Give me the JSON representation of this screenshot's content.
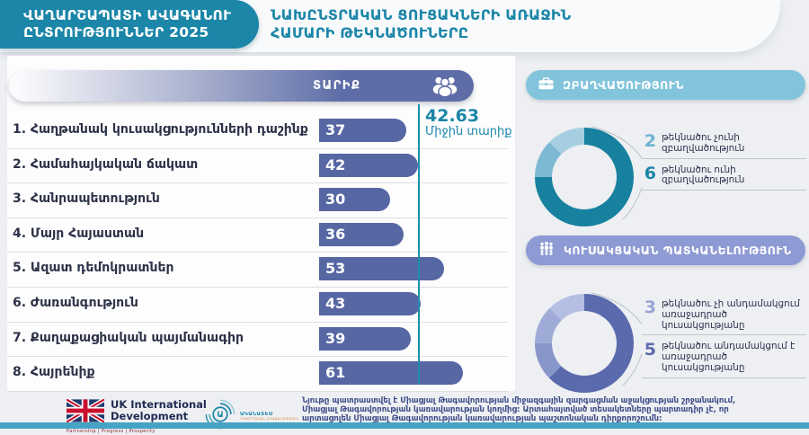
{
  "header": {
    "badge": [
      "ՎԱՂԱՐՇԱՊԱՏԻ ԱՎԱԳԱՆՈՒ",
      "ԸՆՏՐՈՒԹՅՈՒՆՆԵՐ 2025"
    ],
    "title": [
      "ՆԱԽԸՆՏՐԱԿԱՆ ՑՈՒՑԱԿՆԵՐԻ ԱՌԱՋԻՆ",
      "ՀԱՄԱՐԻ ԹԵԿՆԱԾՈՒՆԵՐԸ"
    ]
  },
  "age_section": {
    "column_header": "ՏԱՐԻՔ",
    "average_value": "42.63",
    "average_label": "Միջին տարիք"
  },
  "chart_data": [
    {
      "type": "bar",
      "orientation": "horizontal",
      "title": "ՏԱՐԻՔ",
      "categories": [
        "1. Հաղթանակ կուսակցությունների դաշինք",
        "2. Համահայկական ճակատ",
        "3. Հանրապետություն",
        "4. Մայր Հայաստան",
        "5. Ազատ դեմոկրատներ",
        "6. Ժառանգություն",
        "7. Քաղաքացիական պայմանագիր",
        "8. Հայրենիք"
      ],
      "values": [
        37,
        42,
        30,
        36,
        53,
        43,
        39,
        61
      ],
      "average_line": 42.63,
      "average_label": "Միջին տարիք",
      "xlim": [
        0,
        65
      ],
      "bar_color": "#5767a4"
    },
    {
      "type": "pie",
      "title": "ԶԲԱՂՎԱԾՈՒԹՅՈՒՆ",
      "slices": [
        {
          "label": "թեկնածու ունի զբաղվածություն",
          "value": 6,
          "color": "#17819f"
        },
        {
          "label": "թեկնածու չունի զբաղվածություն",
          "value": 2,
          "color": "#7db9d3",
          "shades": [
            "#7db9d3",
            "#a5cfe0"
          ]
        }
      ]
    },
    {
      "type": "pie",
      "title": "ԿՈՒՍԱԿՑԱԿԱՆ ՊԱՏԿԱՆԵԼՈՒԹՅՈՒՆ",
      "slices": [
        {
          "label": "թեկնածու անդամակցում է առաջադրած կուսակցությանը",
          "value": 5,
          "color": "#5b6aad"
        },
        {
          "label": "թեկնածու չի անդամակցում առաջադրած կուսակցությանը",
          "value": 3,
          "color": "#8996c9",
          "shades": [
            "#8996c9",
            "#9fabd7",
            "#b5bfe3"
          ]
        }
      ]
    }
  ],
  "employment_section": {
    "title": "ԶԲԱՂՎԱԾՈՒԹՅՈՒՆ",
    "legend": [
      {
        "num": "2",
        "color": "#6fb3d1",
        "line1": "թեկնածու չունի",
        "line2": "զբաղվածություն"
      },
      {
        "num": "6",
        "color": "#1b86a8",
        "line1": "թեկնածու ունի",
        "line2": "զբաղվածություն"
      }
    ]
  },
  "party_section": {
    "title": "ԿՈՒՍԱԿՑԱԿԱՆ ՊԱՏԿԱՆԵԼՈՒԹՅՈՒՆ",
    "legend": [
      {
        "num": "3",
        "color": "#97a4d4",
        "line1": "թեկնածու չի անդամակցում",
        "line2": "առաջադրած կուսակցությանը"
      },
      {
        "num": "5",
        "color": "#5b6aac",
        "line1": "թեկնածու անդամակցում է",
        "line2": "առաջադրած կուսակցությանը"
      }
    ]
  },
  "footer": {
    "uk_logo": {
      "line1": "UK International",
      "line2": "Development",
      "tagline": "Partnership  |  Progress  |  Prosperity"
    },
    "observer_logo": {
      "letter": "Ա",
      "name": "ԱԿԱՆԱՏԵՍ",
      "subtitle": "ԴԻՏՈՐԴԱԿԱՆ ԱՌԱՔԵԼՈՒԹՅՈՒՆ"
    },
    "disclaimer": [
      "Նյութը պատրաստվել է Միացյալ Թագավորության միջազգային զարգացման աջակցության շրջանակում,",
      "Միացյալ Թագավորության կառավարության կողմից: Արտահայտված տեսակետները պարտադիր չէ, որ",
      "արտացոլեն Միացյալ Թագավորության կառավարության պաշտոնական դիրքորոշումն:"
    ]
  }
}
